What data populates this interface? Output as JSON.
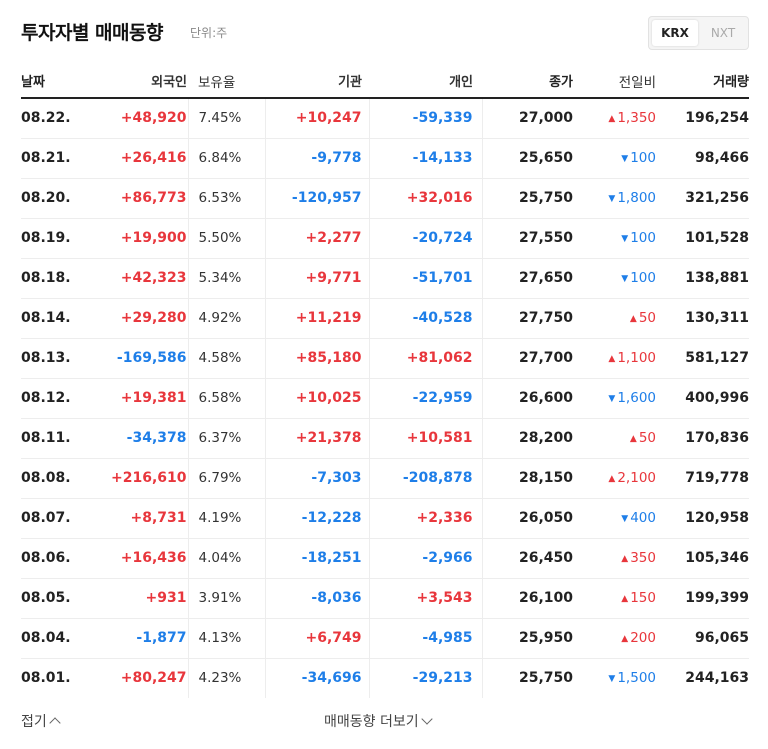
{
  "header": {
    "title": "투자자별 매매동향",
    "unit": "단위:주"
  },
  "market_toggle": {
    "krx": "KRX",
    "nxt": "NXT",
    "selected": "KRX"
  },
  "columns": {
    "date": "날짜",
    "foreign": "외국인",
    "holding": "보유율",
    "institution": "기관",
    "individual": "개인",
    "close": "종가",
    "change": "전일비",
    "volume": "거래량"
  },
  "rows": [
    {
      "date": "08.22.",
      "foreign": "+48,920",
      "holding": "7.45%",
      "institution": "+10,247",
      "individual": "-59,339",
      "close": "27,000",
      "change": "1,350",
      "change_dir": "up",
      "volume": "196,254"
    },
    {
      "date": "08.21.",
      "foreign": "+26,416",
      "holding": "6.84%",
      "institution": "-9,778",
      "individual": "-14,133",
      "close": "25,650",
      "change": "100",
      "change_dir": "down",
      "volume": "98,466"
    },
    {
      "date": "08.20.",
      "foreign": "+86,773",
      "holding": "6.53%",
      "institution": "-120,957",
      "individual": "+32,016",
      "close": "25,750",
      "change": "1,800",
      "change_dir": "down",
      "volume": "321,256"
    },
    {
      "date": "08.19.",
      "foreign": "+19,900",
      "holding": "5.50%",
      "institution": "+2,277",
      "individual": "-20,724",
      "close": "27,550",
      "change": "100",
      "change_dir": "down",
      "volume": "101,528"
    },
    {
      "date": "08.18.",
      "foreign": "+42,323",
      "holding": "5.34%",
      "institution": "+9,771",
      "individual": "-51,701",
      "close": "27,650",
      "change": "100",
      "change_dir": "down",
      "volume": "138,881"
    },
    {
      "date": "08.14.",
      "foreign": "+29,280",
      "holding": "4.92%",
      "institution": "+11,219",
      "individual": "-40,528",
      "close": "27,750",
      "change": "50",
      "change_dir": "up",
      "volume": "130,311"
    },
    {
      "date": "08.13.",
      "foreign": "-169,586",
      "holding": "4.58%",
      "institution": "+85,180",
      "individual": "+81,062",
      "close": "27,700",
      "change": "1,100",
      "change_dir": "up",
      "volume": "581,127"
    },
    {
      "date": "08.12.",
      "foreign": "+19,381",
      "holding": "6.58%",
      "institution": "+10,025",
      "individual": "-22,959",
      "close": "26,600",
      "change": "1,600",
      "change_dir": "down",
      "volume": "400,996"
    },
    {
      "date": "08.11.",
      "foreign": "-34,378",
      "holding": "6.37%",
      "institution": "+21,378",
      "individual": "+10,581",
      "close": "28,200",
      "change": "50",
      "change_dir": "up",
      "volume": "170,836"
    },
    {
      "date": "08.08.",
      "foreign": "+216,610",
      "holding": "6.79%",
      "institution": "-7,303",
      "individual": "-208,878",
      "close": "28,150",
      "change": "2,100",
      "change_dir": "up",
      "volume": "719,778"
    },
    {
      "date": "08.07.",
      "foreign": "+8,731",
      "holding": "4.19%",
      "institution": "-12,228",
      "individual": "+2,336",
      "close": "26,050",
      "change": "400",
      "change_dir": "down",
      "volume": "120,958"
    },
    {
      "date": "08.06.",
      "foreign": "+16,436",
      "holding": "4.04%",
      "institution": "-18,251",
      "individual": "-2,966",
      "close": "26,450",
      "change": "350",
      "change_dir": "up",
      "volume": "105,346"
    },
    {
      "date": "08.05.",
      "foreign": "+931",
      "holding": "3.91%",
      "institution": "-8,036",
      "individual": "+3,543",
      "close": "26,100",
      "change": "150",
      "change_dir": "up",
      "volume": "199,399"
    },
    {
      "date": "08.04.",
      "foreign": "-1,877",
      "holding": "4.13%",
      "institution": "+6,749",
      "individual": "-4,985",
      "close": "25,950",
      "change": "200",
      "change_dir": "up",
      "volume": "96,065"
    },
    {
      "date": "08.01.",
      "foreign": "+80,247",
      "holding": "4.23%",
      "institution": "-34,696",
      "individual": "-29,213",
      "close": "25,750",
      "change": "1,500",
      "change_dir": "down",
      "volume": "244,163"
    }
  ],
  "footer": {
    "collapse": "접기",
    "more": "매매동향 더보기"
  },
  "colors": {
    "positive": "#e8363c",
    "negative": "#1e7ee8"
  },
  "icons": {
    "up": "triangle-up-icon",
    "down": "triangle-down-icon"
  }
}
